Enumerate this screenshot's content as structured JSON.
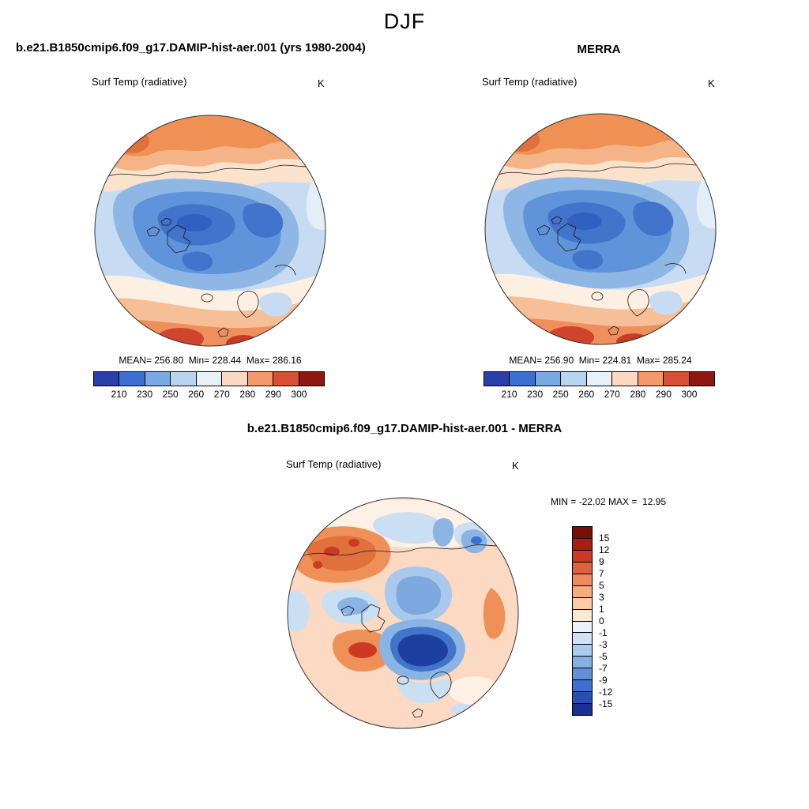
{
  "figure": {
    "title": "DJF"
  },
  "panels": {
    "model": {
      "title": "b.e21.B1850cmip6.f09_g17.DAMIP-hist-aer.001 (yrs 1980-2004)",
      "field_label": "Surf Temp (radiative)",
      "units": "K",
      "stats": "MEAN= 256.80  Min= 228.44  Max= 286.16",
      "colorbar": {
        "orientation": "horizontal",
        "tick_labels": [
          "210",
          "230",
          "250",
          "260",
          "270",
          "280",
          "290",
          "300"
        ],
        "colors": [
          "#2b3fa9",
          "#3c6fd0",
          "#7aaae2",
          "#b9d4f0",
          "#e8f0f8",
          "#fcd9c0",
          "#f4996a",
          "#d94f36",
          "#8f1711"
        ]
      }
    },
    "obs": {
      "title": "MERRA",
      "field_label": "Surf Temp (radiative)",
      "units": "K",
      "stats": "MEAN= 256.90  Min= 224.81  Max= 285.24",
      "colorbar": {
        "orientation": "horizontal",
        "tick_labels": [
          "210",
          "230",
          "250",
          "260",
          "270",
          "280",
          "290",
          "300"
        ],
        "colors": [
          "#2b3fa9",
          "#3c6fd0",
          "#7aaae2",
          "#b9d4f0",
          "#e8f0f8",
          "#fcd9c0",
          "#f4996a",
          "#d94f36",
          "#8f1711"
        ]
      }
    },
    "diff": {
      "title": "b.e21.B1850cmip6.f09_g17.DAMIP-hist-aer.001 - MERRA",
      "field_label": "Surf Temp (radiative)",
      "units": "K",
      "stats": "MIN = -22.02 MAX =  12.95",
      "colorbar": {
        "orientation": "vertical",
        "tick_labels": [
          "15",
          "12",
          "9",
          "7",
          "5",
          "3",
          "1",
          "0",
          "-1",
          "-3",
          "-5",
          "-7",
          "-9",
          "-12",
          "-15"
        ],
        "colors": [
          "#7a0f0a",
          "#a81e13",
          "#cc3a25",
          "#e0603f",
          "#ef8a5c",
          "#f6ab80",
          "#fbcaa6",
          "#fde8d4",
          "#eaf2fb",
          "#cfe2f5",
          "#aaccee",
          "#85b0e4",
          "#5f90d8",
          "#3f6fcc",
          "#2a4fb4",
          "#1a2f8f"
        ]
      }
    }
  },
  "chart_data": [
    {
      "type": "heatmap",
      "subtype": "filled-contour-polar-map",
      "projection": "north-polar-stereographic",
      "season": "DJF",
      "title": "b.e21.B1850cmip6.f09_g17.DAMIP-hist-aer.001 (yrs 1980-2004)",
      "variable": "Surf Temp (radiative)",
      "units": "K",
      "stats": {
        "mean": 256.8,
        "min": 228.44,
        "max": 286.16
      },
      "contour_levels": [
        210,
        230,
        250,
        260,
        270,
        280,
        290,
        300
      ],
      "colorbar_colors": [
        "#2b3fa9",
        "#3c6fd0",
        "#7aaae2",
        "#b9d4f0",
        "#e8f0f8",
        "#fcd9c0",
        "#f4996a",
        "#d94f36",
        "#8f1711"
      ],
      "legend_position": "bottom"
    },
    {
      "type": "heatmap",
      "subtype": "filled-contour-polar-map",
      "projection": "north-polar-stereographic",
      "season": "DJF",
      "title": "MERRA",
      "variable": "Surf Temp (radiative)",
      "units": "K",
      "stats": {
        "mean": 256.9,
        "min": 224.81,
        "max": 285.24
      },
      "contour_levels": [
        210,
        230,
        250,
        260,
        270,
        280,
        290,
        300
      ],
      "colorbar_colors": [
        "#2b3fa9",
        "#3c6fd0",
        "#7aaae2",
        "#b9d4f0",
        "#e8f0f8",
        "#fcd9c0",
        "#f4996a",
        "#d94f36",
        "#8f1711"
      ],
      "legend_position": "bottom"
    },
    {
      "type": "heatmap",
      "subtype": "filled-contour-polar-map-difference",
      "projection": "north-polar-stereographic",
      "season": "DJF",
      "title": "b.e21.B1850cmip6.f09_g17.DAMIP-hist-aer.001 - MERRA",
      "variable": "Surf Temp (radiative)",
      "units": "K",
      "stats": {
        "min": -22.02,
        "max": 12.95
      },
      "contour_levels": [
        -15,
        -12,
        -9,
        -7,
        -5,
        -3,
        -1,
        0,
        1,
        3,
        5,
        7,
        9,
        12,
        15
      ],
      "colorbar_colors": [
        "#7a0f0a",
        "#a81e13",
        "#cc3a25",
        "#e0603f",
        "#ef8a5c",
        "#f6ab80",
        "#fbcaa6",
        "#fde8d4",
        "#eaf2fb",
        "#cfe2f5",
        "#aaccee",
        "#85b0e4",
        "#5f90d8",
        "#3f6fcc",
        "#2a4fb4",
        "#1a2f8f"
      ],
      "legend_position": "right"
    }
  ]
}
